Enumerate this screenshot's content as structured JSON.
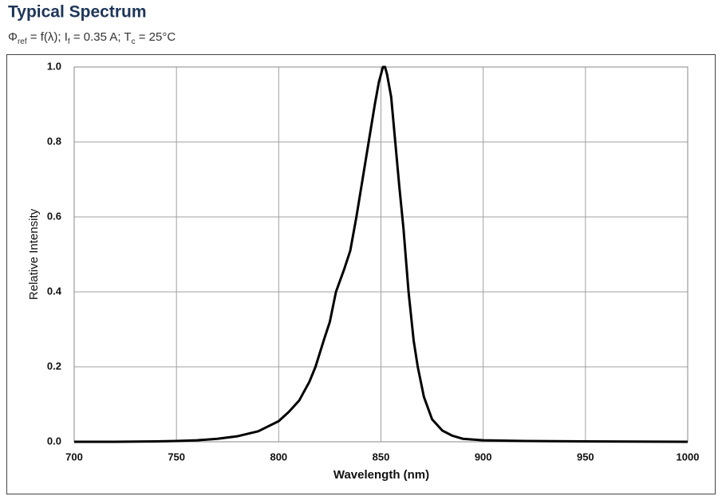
{
  "chart_data": {
    "type": "line",
    "title": "Typical Spectrum",
    "subtitle": [
      "Φ",
      "ref",
      " = f(λ); I",
      "f",
      " = 0.35 A; T",
      "c",
      " = 25°C"
    ],
    "x_label": "Wavelength (nm)",
    "y_label": "Relative Intensity",
    "x": [
      700,
      720,
      740,
      750,
      760,
      770,
      780,
      790,
      800,
      805,
      810,
      815,
      818,
      822,
      825,
      828,
      832,
      835,
      838,
      841,
      844,
      847,
      849,
      851,
      852,
      853,
      855,
      857,
      859,
      861,
      863.5,
      866,
      868,
      871,
      875,
      880,
      885,
      890,
      900,
      920,
      950,
      1000
    ],
    "series": [
      {
        "color": "#000000",
        "values": [
          0,
          0,
          0.001,
          0.002,
          0.004,
          0.008,
          0.015,
          0.028,
          0.055,
          0.08,
          0.11,
          0.16,
          0.2,
          0.27,
          0.32,
          0.4,
          0.46,
          0.51,
          0.6,
          0.7,
          0.8,
          0.9,
          0.96,
          1.0,
          1.0,
          0.98,
          0.92,
          0.8,
          0.68,
          0.57,
          0.4,
          0.27,
          0.2,
          0.12,
          0.06,
          0.03,
          0.016,
          0.008,
          0.004,
          0.002,
          0.001,
          0
        ]
      }
    ],
    "xlim": [
      700,
      1000
    ],
    "xticks": [
      700,
      750,
      800,
      850,
      900,
      950,
      1000
    ],
    "ylim": [
      0,
      1
    ],
    "yticks": [
      {
        "value": 0,
        "label": "0.0"
      },
      0.2,
      0.4,
      0.6,
      0.8,
      {
        "value": 1,
        "label": "1.0"
      }
    ],
    "grid": true
  }
}
